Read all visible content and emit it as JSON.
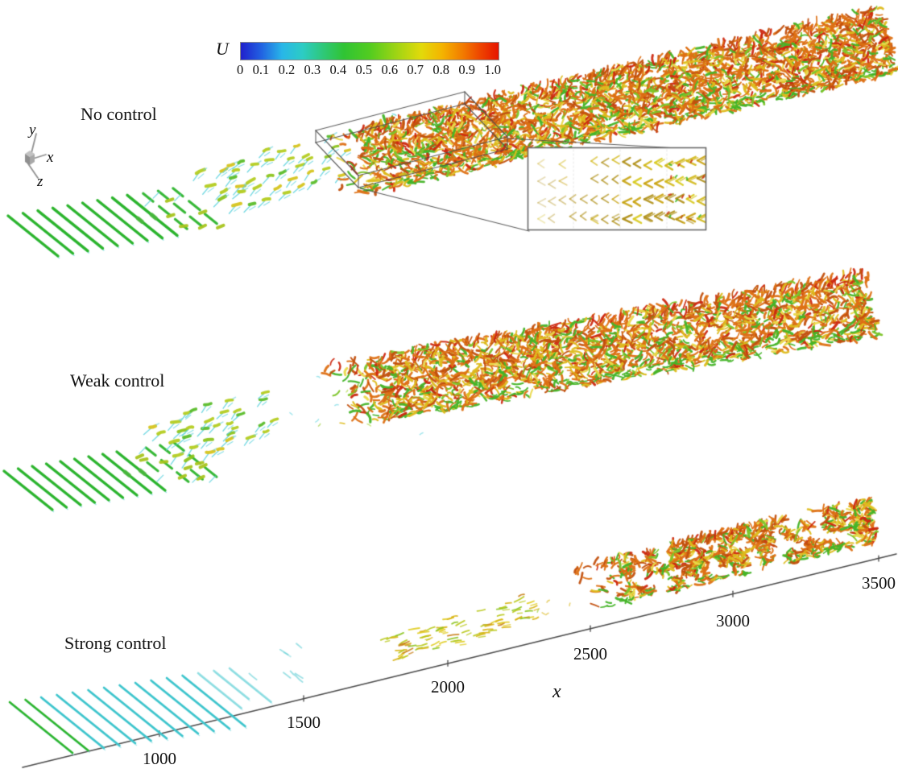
{
  "colorbar": {
    "label": "U",
    "tick_labels": [
      "0",
      "0.1",
      "0.2",
      "0.3",
      "0.4",
      "0.5",
      "0.6",
      "0.7",
      "0.8",
      "0.9",
      "1.0"
    ]
  },
  "triad": {
    "x": "x",
    "y": "y",
    "z": "z"
  },
  "x_axis": {
    "label": "x",
    "tick_labels": [
      "1000",
      "1500",
      "2000",
      "2500",
      "3000",
      "3500"
    ]
  },
  "panels": [
    {
      "label": "No control"
    },
    {
      "label": "Weak control"
    },
    {
      "label": "Strong control"
    }
  ],
  "palette": {
    "streak_green": "#2cb42c",
    "streak_cyan": "#5ad2da",
    "streak_teal": "#3cc4cc",
    "lambda_yellow": "#b4cc20",
    "lambda_cyan": "#56d0dc",
    "turb_orange": "#dd7014",
    "turb_dark_orange": "#c2500e",
    "turb_red": "#cc2810",
    "turb_yellow": "#ddbb1c",
    "turb_green": "#44b428",
    "axis_line": "#4a4a4a",
    "box_line": "#4d4d4d",
    "inset_olive": "#b09018",
    "inset_yellow": "#d2b818"
  },
  "chart_data": {
    "type": "other",
    "description": "Instantaneous vortical structures of a transitional boundary layer, colored by streamwise velocity U (0 to 1.0, blue-cyan-green-yellow-red colormap), for three control cases. Transition to turbulence moves downstream as control strength increases. A wireframe box over the No-control case is magnified in an inset showing aligned Lambda/hairpin vortices.",
    "colorbar": {
      "label": "U",
      "min": 0,
      "max": 1.0,
      "tick_values": [
        0,
        0.1,
        0.2,
        0.3,
        0.4,
        0.5,
        0.6,
        0.7,
        0.8,
        0.9,
        1.0
      ],
      "colormap": "rainbow (blue-cyan-green-yellow-orange-red)"
    },
    "x_axis": {
      "label": "x",
      "tick_values": [
        1000,
        1500,
        2000,
        2500,
        3000,
        3500
      ]
    },
    "cases": [
      {
        "label": "No control",
        "features": [
          "green low-speed streaks upstream (x up to ~1600)",
          "Lambda-vortex transition region",
          "fully turbulent orange/red band from x ~1650 to 3500",
          "wireframe box with magnified inset of Lambda vortices"
        ]
      },
      {
        "label": "Weak control",
        "features": [
          "green low-speed streaks upstream",
          "Lambda-vortex region then calmed gap",
          "turbulent band from x ~1750 to 3500"
        ]
      },
      {
        "label": "Strong control",
        "features": [
          "cyan low-speed streaks persisting to x ~1800",
          "sparse weak disturbance patch x ~1900-2300",
          "turbulent patch only from x ~2450 to 3500"
        ]
      }
    ]
  }
}
